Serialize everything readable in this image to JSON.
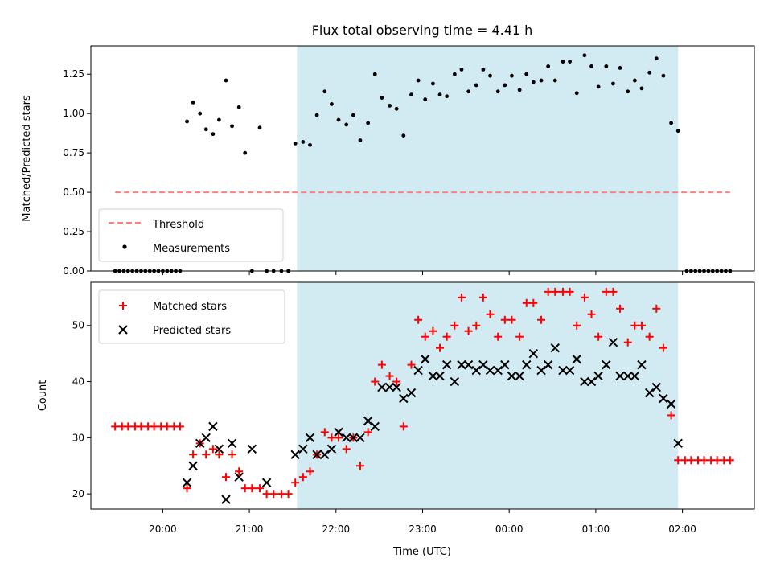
{
  "chart_data": {
    "type": "scatter",
    "title": "Flux total observing time = 4.41 h",
    "xlabel": "Time (UTC)",
    "x_tick_labels": [
      "20:00",
      "21:00",
      "22:00",
      "23:00",
      "00:00",
      "01:00",
      "02:00"
    ],
    "x_tick_hours": [
      20,
      21,
      22,
      23,
      24,
      25,
      26
    ],
    "xlim_hours": [
      19.17,
      26.83
    ],
    "highlight_span_hours": [
      21.55,
      25.95
    ],
    "colors": {
      "threshold": "#ff7f7f",
      "measurements": "#000000",
      "matched": "#ff0000",
      "predicted": "#000000",
      "span": "#add8e6"
    },
    "panels": [
      {
        "ylabel": "Matched/Predicted stars",
        "ylim": [
          0,
          1.43
        ],
        "y_ticks": [
          0,
          0.25,
          0.5,
          0.75,
          1.0,
          1.25
        ],
        "y_tick_labels": [
          "0.00",
          "0.25",
          "0.50",
          "0.75",
          "1.00",
          "1.25"
        ],
        "legend_position": "lower-left",
        "series": [
          {
            "name": "Threshold",
            "kind": "dashed-line",
            "x": [
              19.45,
              26.55
            ],
            "y": [
              0.5,
              0.5
            ]
          },
          {
            "name": "Measurements",
            "kind": "dots",
            "x": [
              19.45,
              19.5,
              19.55,
              19.6,
              19.65,
              19.7,
              19.75,
              19.8,
              19.85,
              19.9,
              19.95,
              20.0,
              20.05,
              20.1,
              20.15,
              20.2,
              20.28,
              20.35,
              20.43,
              20.5,
              20.58,
              20.65,
              20.73,
              20.8,
              20.88,
              20.95,
              21.03,
              21.12,
              21.2,
              21.28,
              21.37,
              21.45,
              21.53,
              21.62,
              21.7,
              21.78,
              21.87,
              21.95,
              22.03,
              22.12,
              22.2,
              22.28,
              22.37,
              22.45,
              22.53,
              22.62,
              22.7,
              22.78,
              22.87,
              22.95,
              23.03,
              23.12,
              23.2,
              23.28,
              23.37,
              23.45,
              23.53,
              23.62,
              23.7,
              23.78,
              23.87,
              23.95,
              24.03,
              24.12,
              24.2,
              24.28,
              24.37,
              24.45,
              24.53,
              24.62,
              24.7,
              24.78,
              24.87,
              24.95,
              25.03,
              25.12,
              25.2,
              25.28,
              25.37,
              25.45,
              25.53,
              25.62,
              25.7,
              25.78,
              25.87,
              25.95,
              26.05,
              26.1,
              26.15,
              26.2,
              26.25,
              26.3,
              26.35,
              26.4,
              26.45,
              26.5,
              26.55
            ],
            "y": [
              0,
              0,
              0,
              0,
              0,
              0,
              0,
              0,
              0,
              0,
              0,
              0,
              0,
              0,
              0,
              0,
              0.95,
              1.07,
              1.0,
              0.9,
              0.87,
              0.96,
              1.21,
              0.92,
              1.04,
              0.75,
              0,
              0.91,
              0,
              0,
              0,
              0,
              0.81,
              0.82,
              0.8,
              0.99,
              1.14,
              1.06,
              0.96,
              0.93,
              0.99,
              0.83,
              0.94,
              1.25,
              1.1,
              1.05,
              1.03,
              0.86,
              1.12,
              1.21,
              1.09,
              1.19,
              1.12,
              1.11,
              1.25,
              1.28,
              1.14,
              1.18,
              1.28,
              1.24,
              1.14,
              1.18,
              1.24,
              1.15,
              1.25,
              1.2,
              1.21,
              1.3,
              1.21,
              1.33,
              1.33,
              1.13,
              1.37,
              1.3,
              1.17,
              1.3,
              1.19,
              1.29,
              1.14,
              1.21,
              1.16,
              1.26,
              1.35,
              1.24,
              0.94,
              0.89,
              0,
              0,
              0,
              0,
              0,
              0,
              0,
              0,
              0,
              0,
              0
            ]
          }
        ]
      },
      {
        "ylabel": "Count",
        "ylim": [
          17.3,
          57.7
        ],
        "y_ticks": [
          20,
          30,
          40,
          50
        ],
        "y_tick_labels": [
          "20",
          "30",
          "40",
          "50"
        ],
        "legend_position": "upper-left",
        "series": [
          {
            "name": "Matched stars",
            "kind": "plus",
            "x": [
              19.45,
              19.53,
              19.6,
              19.68,
              19.75,
              19.83,
              19.9,
              19.98,
              20.05,
              20.13,
              20.2,
              20.28,
              20.35,
              20.43,
              20.5,
              20.58,
              20.65,
              20.73,
              20.8,
              20.88,
              20.95,
              21.03,
              21.12,
              21.2,
              21.28,
              21.37,
              21.45,
              21.53,
              21.62,
              21.7,
              21.78,
              21.87,
              21.95,
              22.03,
              22.12,
              22.2,
              22.28,
              22.37,
              22.45,
              22.53,
              22.62,
              22.7,
              22.78,
              22.87,
              22.95,
              23.03,
              23.12,
              23.2,
              23.28,
              23.37,
              23.45,
              23.53,
              23.62,
              23.7,
              23.78,
              23.87,
              23.95,
              24.03,
              24.12,
              24.2,
              24.28,
              24.37,
              24.45,
              24.53,
              24.62,
              24.7,
              24.78,
              24.87,
              24.95,
              25.03,
              25.12,
              25.2,
              25.28,
              25.37,
              25.45,
              25.53,
              25.62,
              25.7,
              25.78,
              25.87,
              25.95,
              26.03,
              26.1,
              26.18,
              26.25,
              26.33,
              26.4,
              26.48,
              26.55
            ],
            "y": [
              32,
              32,
              32,
              32,
              32,
              32,
              32,
              32,
              32,
              32,
              32,
              21,
              27,
              29,
              27,
              28,
              27,
              23,
              27,
              24,
              21,
              21,
              21,
              20,
              20,
              20,
              20,
              22,
              23,
              24,
              27,
              31,
              30,
              30,
              28,
              30,
              25,
              31,
              40,
              43,
              41,
              40,
              32,
              43,
              51,
              48,
              49,
              46,
              48,
              50,
              55,
              49,
              50,
              55,
              52,
              48,
              51,
              51,
              48,
              54,
              54,
              51,
              56,
              56,
              56,
              56,
              50,
              55,
              52,
              48,
              56,
              56,
              53,
              47,
              50,
              50,
              48,
              53,
              46,
              34,
              26,
              26,
              26,
              26,
              26,
              26,
              26,
              26,
              26
            ]
          },
          {
            "name": "Predicted stars",
            "kind": "x",
            "x": [
              20.28,
              20.35,
              20.43,
              20.5,
              20.58,
              20.65,
              20.73,
              20.8,
              20.88,
              21.03,
              21.2,
              21.53,
              21.62,
              21.7,
              21.78,
              21.87,
              21.95,
              22.03,
              22.12,
              22.2,
              22.28,
              22.37,
              22.45,
              22.53,
              22.62,
              22.7,
              22.78,
              22.87,
              22.95,
              23.03,
              23.12,
              23.2,
              23.28,
              23.37,
              23.45,
              23.53,
              23.62,
              23.7,
              23.78,
              23.87,
              23.95,
              24.03,
              24.12,
              24.2,
              24.28,
              24.37,
              24.45,
              24.53,
              24.62,
              24.7,
              24.78,
              24.87,
              24.95,
              25.03,
              25.12,
              25.2,
              25.28,
              25.37,
              25.45,
              25.53,
              25.62,
              25.7,
              25.78,
              25.87,
              25.95
            ],
            "y": [
              22,
              25,
              29,
              30,
              32,
              28,
              19,
              29,
              23,
              28,
              22,
              27,
              28,
              30,
              27,
              27,
              28,
              31,
              30,
              30,
              30,
              33,
              32,
              39,
              39,
              39,
              37,
              38,
              42,
              44,
              41,
              41,
              43,
              40,
              43,
              43,
              42,
              43,
              42,
              42,
              43,
              41,
              41,
              43,
              45,
              42,
              43,
              46,
              42,
              42,
              44,
              40,
              40,
              41,
              43,
              47,
              41,
              41,
              41,
              43,
              38,
              39,
              37,
              36,
              29
            ]
          }
        ]
      }
    ]
  }
}
